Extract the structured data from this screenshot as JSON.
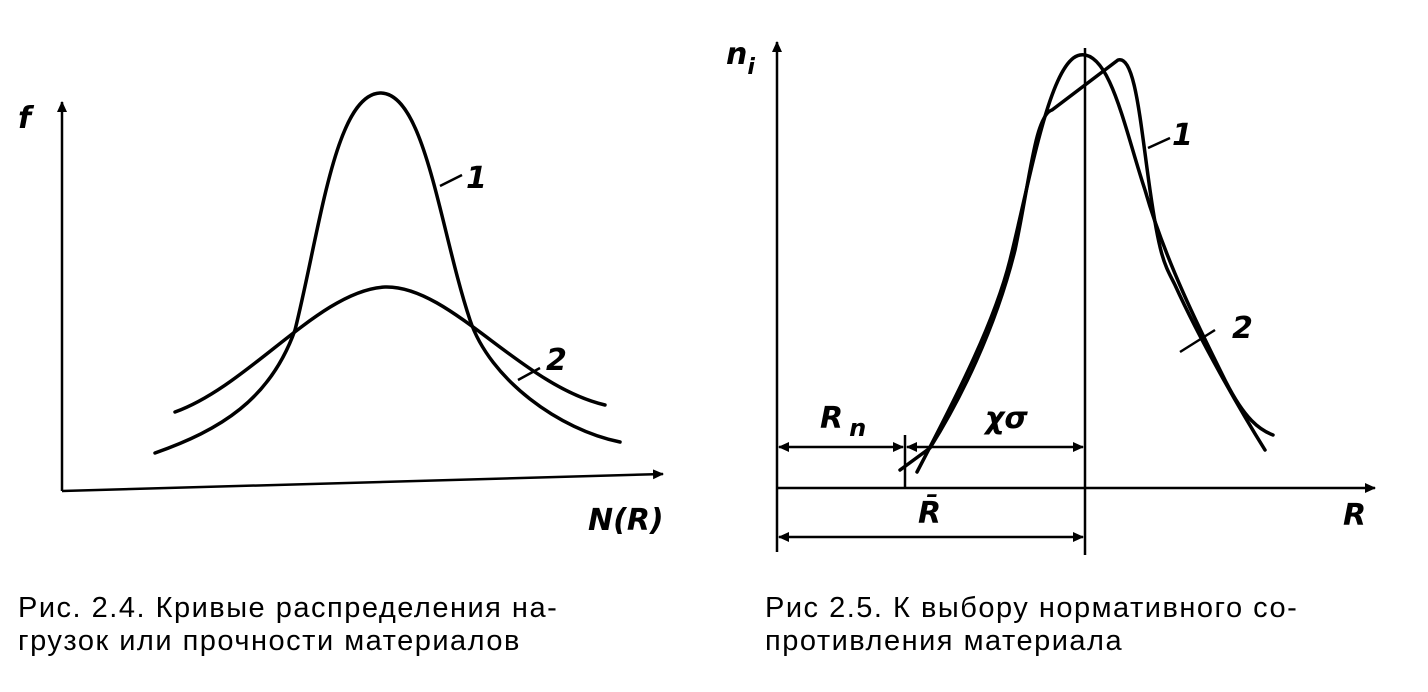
{
  "figures": [
    {
      "axis_y": "f",
      "axis_x": "N(R)",
      "curve_labels": [
        "1",
        "2"
      ],
      "caption": [
        "Рис. 2.4. Кривые распределения  на-",
        "грузок или прочности материалов"
      ]
    },
    {
      "axis_y": {
        "main": "n",
        "sub": "i"
      },
      "axis_x": "R",
      "curve_labels": [
        "1",
        "2"
      ],
      "dimension_labels": {
        "r_n": {
          "main": "R",
          "sub": "n"
        },
        "chi_sigma": "χσ",
        "r_mean": "R̄"
      },
      "caption": [
        "Рис  2.5. К выбору нормативного со-",
        "противления материала"
      ]
    }
  ]
}
